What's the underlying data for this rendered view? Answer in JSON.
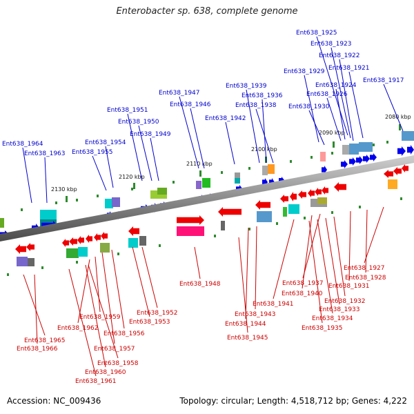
{
  "title": "Enterobacter sp. 638, complete genome",
  "footer": {
    "accession": "Accession: NC_009436",
    "summary": "Topology: circular; Length: 4,518,712 bp; Genes: 4,222"
  },
  "colors": {
    "top_label": "#0000cc",
    "bottom_label": "#cc0000",
    "backbone": "#8c8c8c",
    "tick": "#2e8b2e"
  },
  "ticks": [
    {
      "text": "2130 kbp"
    },
    {
      "text": "2120 kbp"
    },
    {
      "text": "2110 kbp"
    },
    {
      "text": "2100 kbp"
    },
    {
      "text": "2090 kbp"
    },
    {
      "text": "2080 kbp"
    }
  ],
  "top_labels": [
    {
      "text": "Ent638_1925"
    },
    {
      "text": "Ent638_1923"
    },
    {
      "text": "Ent638_1922"
    },
    {
      "text": "Ent638_1921"
    },
    {
      "text": "Ent638_1929"
    },
    {
      "text": "Ent638_1924"
    },
    {
      "text": "Ent638_1917"
    },
    {
      "text": "Ent638_1926"
    },
    {
      "text": "Ent638_1930"
    },
    {
      "text": "Ent638_1939"
    },
    {
      "text": "Ent638_1936"
    },
    {
      "text": "Ent638_1938"
    },
    {
      "text": "Ent638_1947"
    },
    {
      "text": "Ent638_1946"
    },
    {
      "text": "Ent638_1942"
    },
    {
      "text": "Ent638_1951"
    },
    {
      "text": "Ent638_1950"
    },
    {
      "text": "Ent638_1949"
    },
    {
      "text": "Ent638_1954"
    },
    {
      "text": "Ent638_1955"
    },
    {
      "text": "Ent638_1964"
    },
    {
      "text": "Ent638_1963"
    }
  ],
  "bottom_labels": [
    {
      "text": "Ent638_1927"
    },
    {
      "text": "Ent638_1928"
    },
    {
      "text": "Ent638_1931"
    },
    {
      "text": "Ent638_1937"
    },
    {
      "text": "Ent638_1940"
    },
    {
      "text": "Ent638_1948"
    },
    {
      "text": "Ent638_1932"
    },
    {
      "text": "Ent638_1941"
    },
    {
      "text": "Ent638_1933"
    },
    {
      "text": "Ent638_1943"
    },
    {
      "text": "Ent638_1934"
    },
    {
      "text": "Ent638_1944"
    },
    {
      "text": "Ent638_1935"
    },
    {
      "text": "Ent638_1952"
    },
    {
      "text": "Ent638_1953"
    },
    {
      "text": "Ent638_1959"
    },
    {
      "text": "Ent638_1962"
    },
    {
      "text": "Ent638_1956"
    },
    {
      "text": "Ent638_1945"
    },
    {
      "text": "Ent638_1965"
    },
    {
      "text": "Ent638_1966"
    },
    {
      "text": "Ent638_1957"
    },
    {
      "text": "Ent638_1958"
    },
    {
      "text": "Ent638_1960"
    },
    {
      "text": "Ent638_1961"
    }
  ]
}
